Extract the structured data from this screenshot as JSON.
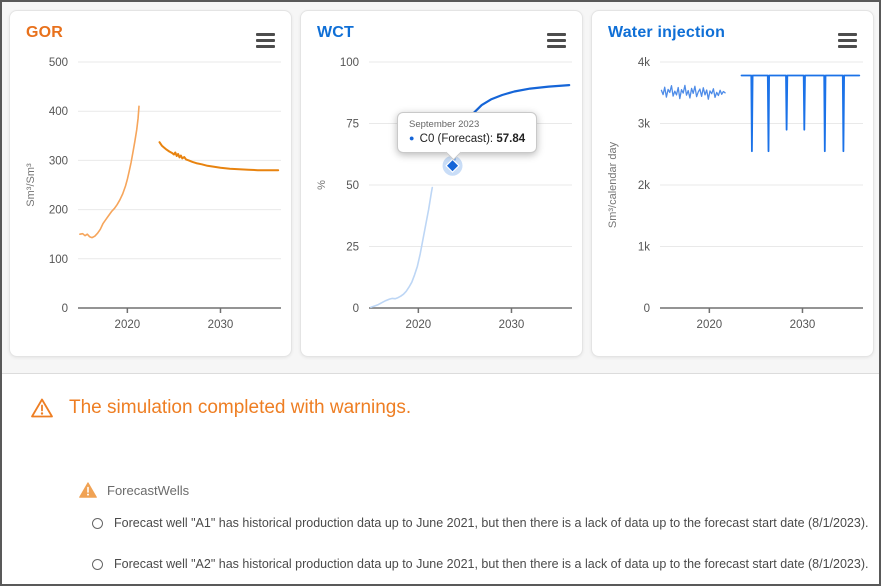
{
  "page": {
    "background": "#f6f6f6",
    "frame_border": "#595959",
    "accent_orange": "#ee7e23",
    "accent_blue": "#0f6fd6"
  },
  "tooltip": {
    "date": "September 2023",
    "label": "C0 (Forecast):",
    "value": "57.84",
    "bullet": "●",
    "bullet_color": "#1565d8"
  },
  "warnings": {
    "headline": "The simulation completed with warnings.",
    "group_title": "ForecastWells",
    "items": [
      "Forecast well \"A1\" has historical production data up to June 2021, but then there is a lack of data up to the forecast start date (8/1/2023).",
      "Forecast well \"A2\" has historical production data up to June 2021, but then there is a lack of data up to the forecast start date (8/1/2023)."
    ]
  },
  "chart_data": [
    {
      "type": "line",
      "title": "GOR",
      "title_color": "#e8711c",
      "ylabel": "Sm³/Sm³",
      "xlabel": "",
      "grid": true,
      "legend": "none",
      "axis": {
        "xmin": 2014.7,
        "xmax": 2036.5,
        "ymin": 0,
        "ymax": 500
      },
      "yticks": [
        {
          "v": 0,
          "label": "0"
        },
        {
          "v": 100,
          "label": "100"
        },
        {
          "v": 200,
          "label": "200"
        },
        {
          "v": 300,
          "label": "300"
        },
        {
          "v": 400,
          "label": "400"
        },
        {
          "v": 500,
          "label": "500"
        }
      ],
      "xticks": [
        {
          "v": 2020,
          "label": "2020"
        },
        {
          "v": 2030,
          "label": "2030"
        }
      ],
      "series": [
        {
          "name": "history",
          "color": "#f6a55b",
          "width": 1.6,
          "points": [
            [
              2014.9,
              150
            ],
            [
              2015.2,
              151
            ],
            [
              2015.45,
              147
            ],
            [
              2015.7,
              150
            ],
            [
              2015.95,
              145
            ],
            [
              2016.2,
              143
            ],
            [
              2016.5,
              146
            ],
            [
              2016.8,
              152
            ],
            [
              2017.1,
              160
            ],
            [
              2017.4,
              172
            ],
            [
              2017.7,
              180
            ],
            [
              2018.0,
              188
            ],
            [
              2018.3,
              196
            ],
            [
              2018.6,
              202
            ],
            [
              2018.9,
              210
            ],
            [
              2019.2,
              220
            ],
            [
              2019.5,
              232
            ],
            [
              2019.8,
              248
            ],
            [
              2020.0,
              262
            ],
            [
              2020.2,
              278
            ],
            [
              2020.4,
              296
            ],
            [
              2020.6,
              316
            ],
            [
              2020.8,
              338
            ],
            [
              2021.0,
              362
            ],
            [
              2021.15,
              386
            ],
            [
              2021.25,
              410
            ]
          ]
        },
        {
          "name": "forecast",
          "color": "#e8830f",
          "width": 2,
          "points": [
            [
              2023.45,
              337
            ],
            [
              2023.7,
              330
            ],
            [
              2023.95,
              326
            ],
            [
              2024.2,
              322
            ],
            [
              2024.5,
              318
            ],
            [
              2024.8,
              315
            ],
            [
              2025.0,
              312
            ],
            [
              2025.15,
              316
            ],
            [
              2025.3,
              309
            ],
            [
              2025.45,
              313
            ],
            [
              2025.6,
              306
            ],
            [
              2025.75,
              310
            ],
            [
              2025.9,
              304
            ],
            [
              2026.1,
              307
            ],
            [
              2026.3,
              302
            ],
            [
              2026.6,
              300
            ],
            [
              2027.0,
              297
            ],
            [
              2027.5,
              294
            ],
            [
              2028.0,
              292
            ],
            [
              2028.6,
              289
            ],
            [
              2029.3,
              287
            ],
            [
              2030.0,
              285
            ],
            [
              2031.0,
              283
            ],
            [
              2032.0,
              282
            ],
            [
              2033.0,
              281
            ],
            [
              2034.0,
              280
            ],
            [
              2035.0,
              280
            ],
            [
              2036.2,
              280
            ]
          ]
        }
      ]
    },
    {
      "type": "line",
      "title": "WCT",
      "title_color": "#0f6fd6",
      "ylabel": "%",
      "xlabel": "",
      "grid": true,
      "legend": "none",
      "axis": {
        "xmin": 2014.7,
        "xmax": 2036.5,
        "ymin": 0,
        "ymax": 100
      },
      "yticks": [
        {
          "v": 0,
          "label": "0"
        },
        {
          "v": 25,
          "label": "25"
        },
        {
          "v": 50,
          "label": "50"
        },
        {
          "v": 75,
          "label": "75"
        },
        {
          "v": 100,
          "label": "100"
        }
      ],
      "xticks": [
        {
          "v": 2020,
          "label": "2020"
        },
        {
          "v": 2030,
          "label": "2030"
        }
      ],
      "marker": {
        "x": 2023.67,
        "y": 57.84,
        "color": "#1565d8",
        "halo": "#9dc1f0"
      },
      "series": [
        {
          "name": "history",
          "color": "#bdd6f5",
          "width": 1.6,
          "points": [
            [
              2014.9,
              0.3
            ],
            [
              2015.3,
              0.8
            ],
            [
              2015.7,
              1.4
            ],
            [
              2016.1,
              2.2
            ],
            [
              2016.5,
              3.0
            ],
            [
              2016.9,
              3.6
            ],
            [
              2017.2,
              3.9
            ],
            [
              2017.5,
              3.8
            ],
            [
              2017.8,
              4.2
            ],
            [
              2018.1,
              4.8
            ],
            [
              2018.4,
              5.6
            ],
            [
              2018.7,
              6.8
            ],
            [
              2019.0,
              8.5
            ],
            [
              2019.3,
              10.5
            ],
            [
              2019.6,
              13.5
            ],
            [
              2019.9,
              17
            ],
            [
              2020.2,
              22
            ],
            [
              2020.5,
              28
            ],
            [
              2020.8,
              34
            ],
            [
              2021.1,
              40
            ],
            [
              2021.4,
              47
            ],
            [
              2021.5,
              49
            ]
          ]
        },
        {
          "name": "forecast",
          "color": "#1565d8",
          "width": 2.2,
          "points": [
            [
              2023.6,
              57.2
            ],
            [
              2023.67,
              57.84
            ],
            [
              2024.0,
              62
            ],
            [
              2024.4,
              67
            ],
            [
              2024.9,
              72
            ],
            [
              2025.4,
              76
            ],
            [
              2026.0,
              79.5
            ],
            [
              2026.8,
              82.5
            ],
            [
              2027.8,
              84.8
            ],
            [
              2029.0,
              86.6
            ],
            [
              2030.3,
              88
            ],
            [
              2032.0,
              89.2
            ],
            [
              2034.0,
              90
            ],
            [
              2036.2,
              90.6
            ]
          ]
        }
      ]
    },
    {
      "type": "line",
      "title": "Water injection",
      "title_color": "#0f6fd6",
      "ylabel": "Sm³/calendar day",
      "xlabel": "",
      "grid": true,
      "legend": "none",
      "axis": {
        "xmin": 2014.7,
        "xmax": 2036.5,
        "ymin": 0,
        "ymax": 4000
      },
      "yticks": [
        {
          "v": 0,
          "label": "0"
        },
        {
          "v": 1000,
          "label": "1k"
        },
        {
          "v": 2000,
          "label": "2k"
        },
        {
          "v": 3000,
          "label": "3k"
        },
        {
          "v": 4000,
          "label": "4k"
        }
      ],
      "xticks": [
        {
          "v": 2020,
          "label": "2020"
        },
        {
          "v": 2030,
          "label": "2030"
        }
      ],
      "series": [
        {
          "name": "history",
          "color": "#4e8ce8",
          "width": 1.3,
          "points": [
            [
              2014.85,
              3540
            ],
            [
              2015.03,
              3470
            ],
            [
              2015.21,
              3590
            ],
            [
              2015.39,
              3430
            ],
            [
              2015.57,
              3555
            ],
            [
              2015.75,
              3505
            ],
            [
              2015.93,
              3615
            ],
            [
              2016.11,
              3445
            ],
            [
              2016.29,
              3525
            ],
            [
              2016.47,
              3465
            ],
            [
              2016.65,
              3585
            ],
            [
              2016.83,
              3405
            ],
            [
              2017.01,
              3550
            ],
            [
              2017.19,
              3495
            ],
            [
              2017.37,
              3620
            ],
            [
              2017.55,
              3460
            ],
            [
              2017.73,
              3535
            ],
            [
              2017.91,
              3415
            ],
            [
              2018.09,
              3570
            ],
            [
              2018.27,
              3490
            ],
            [
              2018.45,
              3605
            ],
            [
              2018.63,
              3435
            ],
            [
              2018.81,
              3515
            ],
            [
              2018.99,
              3560
            ],
            [
              2019.17,
              3440
            ],
            [
              2019.35,
              3580
            ],
            [
              2019.53,
              3465
            ],
            [
              2019.71,
              3545
            ],
            [
              2019.89,
              3395
            ],
            [
              2020.07,
              3530
            ],
            [
              2020.25,
              3485
            ],
            [
              2020.43,
              3565
            ],
            [
              2020.61,
              3425
            ],
            [
              2020.79,
              3505
            ],
            [
              2020.97,
              3455
            ],
            [
              2021.15,
              3540
            ],
            [
              2021.33,
              3475
            ],
            [
              2021.51,
              3520
            ],
            [
              2021.69,
              3500
            ]
          ]
        },
        {
          "name": "forecast",
          "color": "#1b72e8",
          "width": 1.8,
          "points": [
            [
              2023.45,
              3780
            ],
            [
              2024.5,
              3780
            ],
            [
              2024.57,
              2550
            ],
            [
              2024.64,
              3780
            ],
            [
              2026.28,
              3780
            ],
            [
              2026.35,
              2550
            ],
            [
              2026.42,
              3780
            ],
            [
              2028.23,
              3780
            ],
            [
              2028.3,
              2900
            ],
            [
              2028.37,
              3780
            ],
            [
              2030.13,
              3780
            ],
            [
              2030.2,
              2900
            ],
            [
              2030.27,
              3780
            ],
            [
              2032.33,
              3780
            ],
            [
              2032.4,
              2550
            ],
            [
              2032.47,
              3780
            ],
            [
              2034.33,
              3780
            ],
            [
              2034.4,
              2550
            ],
            [
              2034.47,
              3780
            ],
            [
              2036.1,
              3780
            ]
          ]
        }
      ]
    }
  ]
}
